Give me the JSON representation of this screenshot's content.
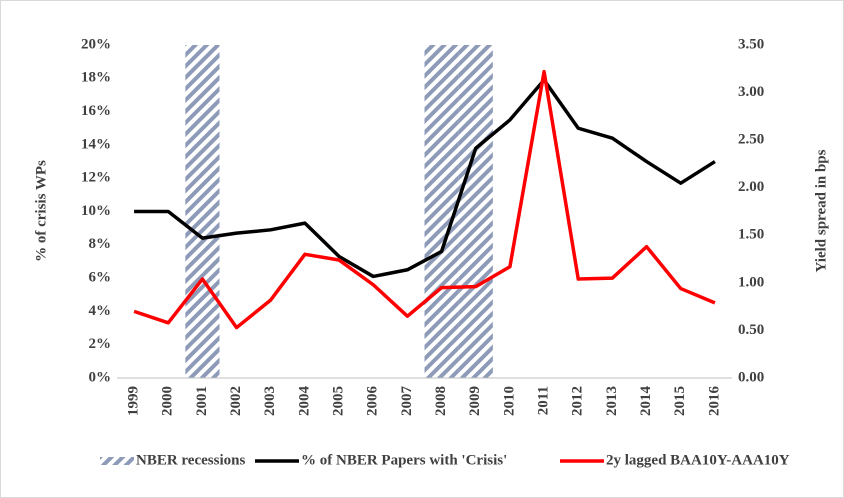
{
  "chart_data": {
    "type": "line",
    "categories": [
      "1999",
      "2000",
      "2001",
      "2002",
      "2003",
      "2004",
      "2005",
      "2006",
      "2007",
      "2008",
      "2009",
      "2010",
      "2011",
      "2012",
      "2013",
      "2014",
      "2015",
      "2016"
    ],
    "series": [
      {
        "name": "NBER recessions",
        "type": "bar",
        "color": "#8e9bb8",
        "values": [
          null,
          null,
          20,
          null,
          null,
          null,
          null,
          null,
          null,
          20,
          20,
          null,
          null,
          null,
          null,
          null,
          null,
          null
        ]
      },
      {
        "name": "% of NBER Papers with 'Crisis'",
        "type": "line",
        "color": "#000000",
        "values": [
          10.0,
          10.0,
          8.4,
          8.7,
          8.9,
          9.3,
          7.3,
          6.1,
          6.5,
          7.6,
          13.8,
          15.5,
          17.9,
          15.0,
          14.4,
          13.0,
          11.7,
          13.0
        ]
      },
      {
        "name": "2y lagged BAA10Y-AAA10Y",
        "type": "line",
        "color": "#ff0000",
        "axis": "y2",
        "values": [
          0.7,
          0.58,
          1.04,
          0.53,
          0.82,
          1.3,
          1.24,
          0.98,
          0.65,
          0.95,
          0.96,
          1.17,
          3.22,
          1.04,
          1.05,
          1.38,
          0.94,
          0.79
        ]
      }
    ],
    "ylabel": "% of crisis WPs",
    "y2label": "Yield spread in bps",
    "ylim": [
      0,
      20
    ],
    "yticks": [
      {
        "value": 0,
        "label": "0%"
      },
      {
        "value": 2,
        "label": "2%"
      },
      {
        "value": 4,
        "label": "4%"
      },
      {
        "value": 6,
        "label": "6%"
      },
      {
        "value": 8,
        "label": "8%"
      },
      {
        "value": 10,
        "label": "10%"
      },
      {
        "value": 12,
        "label": "12%"
      },
      {
        "value": 14,
        "label": "14%"
      },
      {
        "value": 16,
        "label": "16%"
      },
      {
        "value": 18,
        "label": "18%"
      },
      {
        "value": 20,
        "label": "20%"
      }
    ],
    "y2lim": [
      0,
      3.5
    ],
    "y2ticks": [
      {
        "value": 0,
        "label": "0.00"
      },
      {
        "value": 0.5,
        "label": "0.50"
      },
      {
        "value": 1,
        "label": "1.00"
      },
      {
        "value": 1.5,
        "label": "1.50"
      },
      {
        "value": 2,
        "label": "2.00"
      },
      {
        "value": 2.5,
        "label": "2.50"
      },
      {
        "value": 3,
        "label": "3.00"
      },
      {
        "value": 3.5,
        "label": "3.50"
      }
    ],
    "legend": "bottom"
  }
}
